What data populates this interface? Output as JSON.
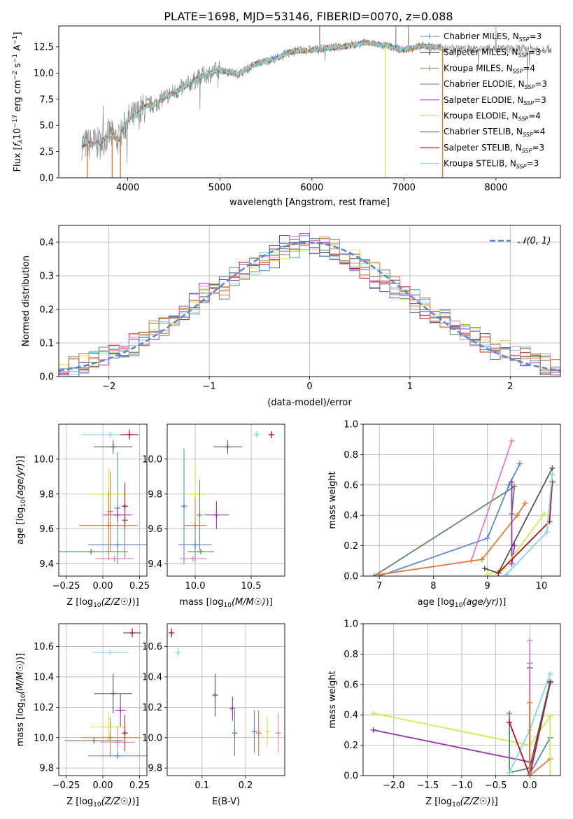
{
  "figure_title": "PLATE=1698, MJD=53146, FIBERID=0070, z=0.088",
  "colors": {
    "Chabrier MILES": "#5b87d6",
    "Salpeter MILES": "#222222",
    "Kroupa MILES": "#e07b39",
    "Chabrier ELODIE": "#5f8a66",
    "Salpeter ELODIE": "#9b30b8",
    "Kroupa ELODIE": "#d4e84a",
    "Chabrier STELIB": "#555555",
    "Salpeter STELIB": "#b0151f",
    "Kroupa STELIB": "#7fdbe0",
    "gaussian": "#5b87d6",
    "extra_pink": "#e37fbd"
  },
  "chart_data": [
    {
      "id": "spectrum",
      "type": "line",
      "title": "PLATE=1698, MJD=53146, FIBERID=0070, z=0.088",
      "xlabel": "wavelength [Angstrom, rest frame]",
      "ylabel": "Flux [f_λ 10^-17 erg cm^-2 s^-1 A^-1]",
      "xlim": [
        3250,
        8700
      ],
      "ylim": [
        0,
        14.5
      ],
      "xticks": [
        4000,
        5000,
        6000,
        7000,
        8000
      ],
      "yticks": [
        "0.0",
        "2.5",
        "5.0",
        "7.5",
        "10.0",
        "12.5"
      ],
      "legend_position": "top-right",
      "legend": [
        {
          "name": "Chabrier MILES, N_SSP=3",
          "label": "Chabrier MILES, N",
          "sub": "SSP",
          "suffix": "=3"
        },
        {
          "name": "Salpeter MILES, N_SSP=3",
          "label": "Salpeter MILES, N",
          "sub": "SSP",
          "suffix": "=3"
        },
        {
          "name": "Kroupa MILES, N_SSP=4",
          "label": "Kroupa MILES, N",
          "sub": "SSP",
          "suffix": "=4"
        },
        {
          "name": "Chabrier ELODIE, N_SSP=3",
          "label": "Chabrier ELODIE, N",
          "sub": "SSP",
          "suffix": "=3"
        },
        {
          "name": "Salpeter ELODIE, N_SSP=3",
          "label": "Salpeter ELODIE, N",
          "sub": "SSP",
          "suffix": "=3"
        },
        {
          "name": "Kroupa ELODIE, N_SSP=4",
          "label": "Kroupa ELODIE, N",
          "sub": "SSP",
          "suffix": "=4"
        },
        {
          "name": "Chabrier STELIB, N_SSP=4",
          "label": "Chabrier STELIB, N",
          "sub": "SSP",
          "suffix": "=4"
        },
        {
          "name": "Salpeter STELIB, N_SSP=3",
          "label": "Salpeter STELIB, N",
          "sub": "SSP",
          "suffix": "=3"
        },
        {
          "name": "Kroupa STELIB, N_SSP=3",
          "label": "Kroupa STELIB, N",
          "sub": "SSP",
          "suffix": "=3"
        }
      ],
      "envelope": {
        "wavelength": [
          3500,
          3700,
          3800,
          3900,
          4000,
          4100,
          4200,
          4300,
          4400,
          4600,
          4800,
          5000,
          5200,
          5400,
          5600,
          5800,
          6000,
          6200,
          6400,
          6600,
          6800,
          7000,
          7200,
          7400
        ],
        "flux": [
          3.2,
          3.3,
          4.2,
          3.6,
          5.5,
          6.0,
          6.9,
          7.0,
          7.7,
          8.6,
          9.7,
          10.3,
          9.9,
          10.9,
          11.4,
          12.1,
          12.2,
          12.4,
          12.6,
          12.9,
          12.6,
          12.2,
          12.6,
          12.4
        ]
      },
      "data_trace_extends_to": 8600,
      "drops": [
        3560,
        3830,
        3920,
        6800,
        7420
      ]
    },
    {
      "id": "residuals",
      "type": "histogram",
      "xlabel": "(data-model)/error",
      "ylabel": "Normed distribution",
      "xlim": [
        -2.5,
        2.5
      ],
      "ylim": [
        0,
        0.45
      ],
      "xticks": [
        "−2",
        "−1",
        "0",
        "1",
        "2"
      ],
      "yticks": [
        "0.0",
        "0.1",
        "0.2",
        "0.3",
        "0.4"
      ],
      "legend_position": "top-right",
      "legend_label": "𝒩(0, 1)",
      "bin_width": 0.1,
      "bin_start": -2.5,
      "histograms": [
        [
          0.03,
          0.03,
          0.04,
          0.05,
          0.07,
          0.06,
          0.08,
          0.09,
          0.12,
          0.14,
          0.15,
          0.17,
          0.2,
          0.21,
          0.24,
          0.27,
          0.26,
          0.3,
          0.31,
          0.33,
          0.36,
          0.35,
          0.38,
          0.39,
          0.4,
          0.4,
          0.39,
          0.38,
          0.36,
          0.35,
          0.33,
          0.31,
          0.3,
          0.27,
          0.25,
          0.23,
          0.21,
          0.19,
          0.17,
          0.15,
          0.14,
          0.12,
          0.1,
          0.09,
          0.08,
          0.07,
          0.06,
          0.05,
          0.04,
          0.03
        ],
        [
          0.02,
          0.03,
          0.03,
          0.05,
          0.06,
          0.07,
          0.09,
          0.1,
          0.11,
          0.13,
          0.16,
          0.18,
          0.19,
          0.22,
          0.25,
          0.25,
          0.28,
          0.3,
          0.32,
          0.35,
          0.34,
          0.37,
          0.4,
          0.38,
          0.42,
          0.39,
          0.38,
          0.37,
          0.35,
          0.33,
          0.32,
          0.29,
          0.28,
          0.26,
          0.24,
          0.22,
          0.2,
          0.18,
          0.16,
          0.14,
          0.13,
          0.11,
          0.1,
          0.08,
          0.07,
          0.06,
          0.05,
          0.04,
          0.03,
          0.02
        ]
      ]
    },
    {
      "id": "age-vs-Z",
      "type": "errorbar",
      "xlabel": "Z [log10(Z/Z☉)]",
      "ylabel": "age [log10(age/yr)]",
      "xlim": [
        -0.3,
        0.3
      ],
      "ylim": [
        9.33,
        10.2
      ],
      "xticks": [
        "−0.25",
        "0.00",
        "0.25"
      ],
      "yticks": [
        "9.4",
        "9.6",
        "9.8",
        "10.0"
      ],
      "points": [
        {
          "x": 0.05,
          "y": 10.14,
          "xerr": 0.2,
          "yerr": 0.0,
          "color": "Kroupa STELIB"
        },
        {
          "x": 0.18,
          "y": 10.14,
          "xerr": 0.06,
          "yerr": 0.03,
          "color": "Salpeter STELIB"
        },
        {
          "x": 0.07,
          "y": 10.07,
          "xerr": 0.13,
          "yerr": 0.04,
          "color": "Chabrier STELIB"
        },
        {
          "x": 0.1,
          "y": 9.72,
          "xerr": 0.02,
          "yerr": 0.32,
          "color": "Chabrier MILES"
        },
        {
          "x": 0.04,
          "y": 9.8,
          "xerr": 0.13,
          "yerr": 0.15,
          "color": "Kroupa ELODIE"
        },
        {
          "x": 0.15,
          "y": 9.65,
          "xerr": 0.02,
          "yerr": 0.22,
          "color": "Chabrier ELODIE"
        },
        {
          "x": 0.05,
          "y": 9.7,
          "xerr": 0.02,
          "yerr": 0.23,
          "color": "Kroupa MILES"
        },
        {
          "x": 0.1,
          "y": 9.68,
          "xerr": 0.1,
          "yerr": 0.04,
          "color": "Salpeter ELODIE"
        },
        {
          "x": 0.04,
          "y": 9.62,
          "xerr": 0.2,
          "yerr": 0.2,
          "color": "Kroupa MILES"
        },
        {
          "x": 0.1,
          "y": 9.51,
          "xerr": 0.2,
          "yerr": 0.0,
          "color": "Chabrier MILES"
        },
        {
          "x": 0.15,
          "y": 9.73,
          "xerr": 0.0,
          "yerr": 0.13,
          "color": "Salpeter STELIB"
        },
        {
          "x": -0.08,
          "y": 9.47,
          "xerr": 0.25,
          "yerr": 0.0,
          "color": "Chabrier ELODIE"
        },
        {
          "x": 0.08,
          "y": 9.43,
          "xerr": 0.13,
          "yerr": 0.0,
          "color": "extra_pink"
        }
      ]
    },
    {
      "id": "age-vs-mass",
      "type": "errorbar",
      "xlabel": "mass [log10(M/M☉)]",
      "ylabel": "",
      "xlim": [
        9.75,
        10.8
      ],
      "ylim": [
        9.33,
        10.2
      ],
      "xticks": [
        "10.0",
        "10.5"
      ],
      "yticks": [
        "9.4",
        "9.6",
        "9.8",
        "10.0"
      ],
      "points": [
        {
          "x": 10.55,
          "y": 10.14,
          "xerr": 0.03,
          "yerr": 0.02,
          "color": "Kroupa STELIB"
        },
        {
          "x": 10.68,
          "y": 10.14,
          "xerr": 0.02,
          "yerr": 0.02,
          "color": "Salpeter STELIB"
        },
        {
          "x": 10.29,
          "y": 10.07,
          "xerr": 0.13,
          "yerr": 0.04,
          "color": "Chabrier STELIB"
        },
        {
          "x": 9.9,
          "y": 9.73,
          "xerr": 0.02,
          "yerr": 0.33,
          "color": "Chabrier MILES"
        },
        {
          "x": 10.0,
          "y": 9.8,
          "xerr": 0.1,
          "yerr": 0.17,
          "color": "Kroupa ELODIE"
        },
        {
          "x": 10.04,
          "y": 9.68,
          "xerr": 0.02,
          "yerr": 0.2,
          "color": "Chabrier ELODIE"
        },
        {
          "x": 10.19,
          "y": 9.68,
          "xerr": 0.11,
          "yerr": 0.08,
          "color": "Salpeter ELODIE"
        },
        {
          "x": 10.0,
          "y": 9.62,
          "xerr": 0.1,
          "yerr": 0.16,
          "color": "Kroupa MILES"
        },
        {
          "x": 10.0,
          "y": 9.51,
          "xerr": 0.15,
          "yerr": 0.1,
          "color": "Chabrier MILES"
        },
        {
          "x": 10.05,
          "y": 9.47,
          "xerr": 0.12,
          "yerr": 0.0,
          "color": "Chabrier ELODIE"
        },
        {
          "x": 9.98,
          "y": 9.43,
          "xerr": 0.12,
          "yerr": 0.0,
          "color": "extra_pink"
        }
      ]
    },
    {
      "id": "weight-vs-age",
      "type": "line",
      "xlabel": "age [log10(age/yr)]",
      "ylabel": "mass weight",
      "xlim": [
        6.7,
        10.35
      ],
      "ylim": [
        0,
        1.0
      ],
      "xticks": [
        "7",
        "8",
        "9",
        "10"
      ],
      "yticks": [
        "0.0",
        "0.2",
        "0.4",
        "0.6",
        "0.8",
        "1.0"
      ],
      "series": [
        {
          "color": "Chabrier ELODIE",
          "x": [
            6.9,
            9.5,
            9.45
          ],
          "y": [
            0.0,
            0.59,
            0.41
          ]
        },
        {
          "color": "Chabrier MILES",
          "x": [
            7.0,
            9.0,
            9.4,
            9.6
          ],
          "y": [
            0.0,
            0.25,
            0.6,
            0.74
          ]
        },
        {
          "color": "extra_pink",
          "x": [
            8.7,
            9.45
          ],
          "y": [
            0.1,
            0.89
          ]
        },
        {
          "color": "Kroupa MILES",
          "x": [
            7.0,
            8.9,
            9.55,
            9.7
          ],
          "y": [
            0.01,
            0.11,
            0.4,
            0.48
          ]
        },
        {
          "color": "Salpeter ELODIE",
          "x": [
            9.45,
            9.45,
            9.5
          ],
          "y": [
            0.62,
            0.08,
            0.2
          ]
        },
        {
          "color": "Kroupa ELODIE",
          "x": [
            9.0,
            9.3,
            10.05
          ],
          "y": [
            0.01,
            0.05,
            0.41
          ]
        },
        {
          "color": "Chabrier STELIB",
          "x": [
            8.95,
            9.2,
            10.2
          ],
          "y": [
            0.05,
            0.02,
            0.71
          ]
        },
        {
          "color": "Salpeter STELIB",
          "x": [
            9.2,
            10.15,
            10.2
          ],
          "y": [
            0.02,
            0.36,
            0.62
          ]
        },
        {
          "color": "Kroupa STELIB",
          "x": [
            9.35,
            10.1,
            10.2
          ],
          "y": [
            0.01,
            0.29,
            0.67
          ]
        }
      ]
    },
    {
      "id": "mass-vs-Z",
      "type": "errorbar",
      "xlabel": "Z [log10(Z/Z☉)]",
      "ylabel": "mass [log10(M/M☉)]",
      "xlim": [
        -0.3,
        0.3
      ],
      "ylim": [
        9.75,
        10.75
      ],
      "xticks": [
        "−0.25",
        "0.00",
        "0.25"
      ],
      "yticks": [
        "9.8",
        "10.0",
        "10.2",
        "10.4",
        "10.6"
      ],
      "points": [
        {
          "x": 0.2,
          "y": 10.69,
          "xerr": 0.06,
          "yerr": 0.03,
          "color": "Salpeter STELIB"
        },
        {
          "x": 0.05,
          "y": 10.56,
          "xerr": 0.12,
          "yerr": 0.02,
          "color": "Kroupa STELIB"
        },
        {
          "x": 0.07,
          "y": 10.29,
          "xerr": 0.13,
          "yerr": 0.13,
          "color": "Chabrier STELIB"
        },
        {
          "x": 0.12,
          "y": 10.18,
          "xerr": 0.04,
          "yerr": 0.11,
          "color": "Salpeter ELODIE"
        },
        {
          "x": 0.04,
          "y": 10.07,
          "xerr": 0.12,
          "yerr": 0.1,
          "color": "Kroupa ELODIE"
        },
        {
          "x": 0.05,
          "y": 10.0,
          "xerr": 0.2,
          "yerr": 0.13,
          "color": "Kroupa MILES"
        },
        {
          "x": 0.1,
          "y": 9.97,
          "xerr": 0.12,
          "yerr": 0.1,
          "color": "extra_pink"
        },
        {
          "x": -0.06,
          "y": 9.98,
          "xerr": 0.2,
          "yerr": 0.0,
          "color": "Chabrier ELODIE"
        },
        {
          "x": 0.1,
          "y": 9.88,
          "xerr": 0.2,
          "yerr": 0.0,
          "color": "Chabrier MILES"
        },
        {
          "x": 0.15,
          "y": 10.03,
          "xerr": 0.0,
          "yerr": 0.12,
          "color": "Salpeter STELIB"
        }
      ]
    },
    {
      "id": "mass-vs-EBV",
      "type": "errorbar",
      "xlabel": "E(B-V)",
      "ylabel": "",
      "xlim": [
        0.02,
        0.29
      ],
      "ylim": [
        9.75,
        10.75
      ],
      "xticks": [
        "0.1",
        "0.2"
      ],
      "yticks": [
        "9.8",
        "10.0",
        "10.2",
        "10.4",
        "10.6"
      ],
      "points": [
        {
          "x": 0.03,
          "y": 10.69,
          "xerr": 0.0,
          "yerr": 0.03,
          "color": "Salpeter STELIB"
        },
        {
          "x": 0.045,
          "y": 10.56,
          "xerr": 0.0,
          "yerr": 0.03,
          "color": "Kroupa STELIB"
        },
        {
          "x": 0.13,
          "y": 10.28,
          "xerr": 0.0,
          "yerr": 0.14,
          "color": "Chabrier STELIB"
        },
        {
          "x": 0.17,
          "y": 10.19,
          "xerr": 0.0,
          "yerr": 0.08,
          "color": "Salpeter ELODIE"
        },
        {
          "x": 0.175,
          "y": 10.03,
          "xerr": 0.0,
          "yerr": 0.15,
          "color": "Chabrier ELODIE"
        },
        {
          "x": 0.22,
          "y": 10.04,
          "xerr": 0.0,
          "yerr": 0.14,
          "color": "Chabrier MILES"
        },
        {
          "x": 0.23,
          "y": 10.03,
          "xerr": 0.0,
          "yerr": 0.15,
          "color": "Kroupa MILES"
        },
        {
          "x": 0.25,
          "y": 10.04,
          "xerr": 0.0,
          "yerr": 0.1,
          "color": "Kroupa ELODIE"
        },
        {
          "x": 0.275,
          "y": 10.03,
          "xerr": 0.0,
          "yerr": 0.13,
          "color": "extra_pink"
        }
      ]
    },
    {
      "id": "weight-vs-Z",
      "type": "line",
      "xlabel": "Z [log10(Z/Z☉)]",
      "ylabel": "mass weight",
      "xlim": [
        -2.45,
        0.45
      ],
      "ylim": [
        0,
        1.0
      ],
      "xticks": [
        "−2.0",
        "−1.5",
        "−1.0",
        "−0.5",
        "0.0"
      ],
      "yticks": [
        "0.0",
        "0.2",
        "0.4",
        "0.6",
        "0.8",
        "1.0"
      ],
      "series": [
        {
          "color": "Kroupa ELODIE",
          "x": [
            -2.3,
            0.0,
            0.3
          ],
          "y": [
            0.41,
            0.2,
            0.39
          ]
        },
        {
          "color": "Salpeter ELODIE",
          "x": [
            -2.3,
            0.0
          ],
          "y": [
            0.3,
            0.09
          ]
        },
        {
          "color": "Chabrier ELODIE",
          "x": [
            -0.3,
            -0.3,
            0.0
          ],
          "y": [
            0.41,
            0.02,
            0.05
          ]
        },
        {
          "color": "Kroupa STELIB",
          "x": [
            -0.3,
            0.0,
            0.3
          ],
          "y": [
            0.02,
            0.3,
            0.67
          ]
        },
        {
          "color": "Salpeter STELIB",
          "x": [
            -0.3,
            0.0,
            0.3
          ],
          "y": [
            0.35,
            0.0,
            0.61
          ]
        },
        {
          "color": "Chabrier STELIB",
          "x": [
            0.0,
            0.0,
            0.3
          ],
          "y": [
            0.71,
            0.05,
            0.62
          ]
        },
        {
          "color": "Chabrier MILES",
          "x": [
            0.0,
            0.0,
            0.3
          ],
          "y": [
            0.74,
            0.01,
            0.25
          ]
        },
        {
          "color": "extra_pink",
          "x": [
            0.0,
            0.0
          ],
          "y": [
            0.89,
            0.0
          ]
        },
        {
          "color": "Kroupa MILES",
          "x": [
            0.0,
            0.0,
            0.3
          ],
          "y": [
            0.48,
            0.0,
            0.11
          ]
        },
        {
          "color": "Kroupa ELODIE",
          "x": [
            0.3,
            0.3
          ],
          "y": [
            0.39,
            0.0
          ]
        }
      ]
    }
  ]
}
